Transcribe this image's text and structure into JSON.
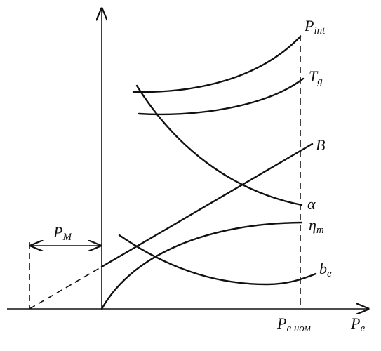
{
  "curves": [
    {
      "label": "P",
      "sub": "int"
    },
    {
      "label": "T",
      "sub": "g"
    },
    {
      "label": "B"
    },
    {
      "label": "α"
    },
    {
      "label": "η",
      "sub": "m"
    },
    {
      "label": "b",
      "sub": "e"
    }
  ],
  "axes": {
    "x_label": {
      "label": "P",
      "sub": "e"
    },
    "x_mark": {
      "label": "P",
      "sub": "e ном"
    },
    "offset": {
      "label": "P",
      "sub": "M"
    }
  }
}
